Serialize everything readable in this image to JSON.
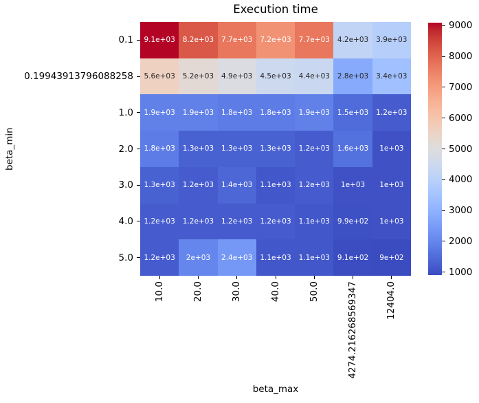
{
  "title": "Execution time",
  "chart_data": {
    "type": "heatmap",
    "title": "Execution time",
    "xlabel": "beta_max",
    "ylabel": "beta_min",
    "x_categories": [
      "10.0",
      "20.0",
      "30.0",
      "40.0",
      "50.0",
      "4274.216268569347",
      "12404.0"
    ],
    "y_categories": [
      "0.1",
      "0.19943913796088258",
      "1.0",
      "2.0",
      "3.0",
      "4.0",
      "5.0"
    ],
    "values": [
      [
        9100,
        8200,
        7700,
        7200,
        7700,
        4200,
        3900
      ],
      [
        5600,
        5200,
        4900,
        4500,
        4400,
        2800,
        3400
      ],
      [
        1900,
        1900,
        1800,
        1800,
        1900,
        1500,
        1200
      ],
      [
        1800,
        1300,
        1300,
        1300,
        1200,
        1600,
        1000
      ],
      [
        1300,
        1200,
        1400,
        1100,
        1200,
        1000,
        1000
      ],
      [
        1200,
        1200,
        1200,
        1200,
        1100,
        990,
        1000
      ],
      [
        1200,
        2000,
        2400,
        1100,
        1100,
        910,
        900
      ]
    ],
    "annot_labels": [
      [
        "9.1e+03",
        "8.2e+03",
        "7.7e+03",
        "7.2e+03",
        "7.7e+03",
        "4.2e+03",
        "3.9e+03"
      ],
      [
        "5.6e+03",
        "5.2e+03",
        "4.9e+03",
        "4.5e+03",
        "4.4e+03",
        "2.8e+03",
        "3.4e+03"
      ],
      [
        "1.9e+03",
        "1.9e+03",
        "1.8e+03",
        "1.8e+03",
        "1.9e+03",
        "1.5e+03",
        "1.2e+03"
      ],
      [
        "1.8e+03",
        "1.3e+03",
        "1.3e+03",
        "1.3e+03",
        "1.2e+03",
        "1.6e+03",
        "1e+03"
      ],
      [
        "1.3e+03",
        "1.2e+03",
        "1.4e+03",
        "1.1e+03",
        "1.2e+03",
        "1e+03",
        "1e+03"
      ],
      [
        "1.2e+03",
        "1.2e+03",
        "1.2e+03",
        "1.2e+03",
        "1.1e+03",
        "9.9e+02",
        "1e+03"
      ],
      [
        "1.2e+03",
        "2e+03",
        "2.4e+03",
        "1.1e+03",
        "1.1e+03",
        "9.1e+02",
        "9e+02"
      ]
    ],
    "annot_colors": [
      [
        "w",
        "w",
        "w",
        "w",
        "w",
        "b",
        "b"
      ],
      [
        "b",
        "b",
        "b",
        "b",
        "b",
        "b",
        "b"
      ],
      [
        "w",
        "w",
        "w",
        "w",
        "w",
        "w",
        "w"
      ],
      [
        "w",
        "w",
        "w",
        "w",
        "w",
        "w",
        "w"
      ],
      [
        "w",
        "w",
        "w",
        "w",
        "w",
        "w",
        "w"
      ],
      [
        "w",
        "w",
        "w",
        "w",
        "w",
        "w",
        "w"
      ],
      [
        "w",
        "w",
        "w",
        "w",
        "w",
        "w",
        "w"
      ]
    ],
    "annot_text_dark": "#262626",
    "annot_text_light": "#ffffff",
    "colormap": "coolwarm",
    "colormap_endpoints": {
      "low": "#3b4cc0",
      "mid": "#dddddd",
      "high": "#b40426"
    },
    "vmin": 900,
    "vmax": 9100,
    "colorbar_ticks": [
      "1000",
      "2000",
      "3000",
      "4000",
      "5000",
      "6000",
      "7000",
      "8000",
      "9000"
    ],
    "legend_position": "right-colorbar",
    "grid": false
  }
}
